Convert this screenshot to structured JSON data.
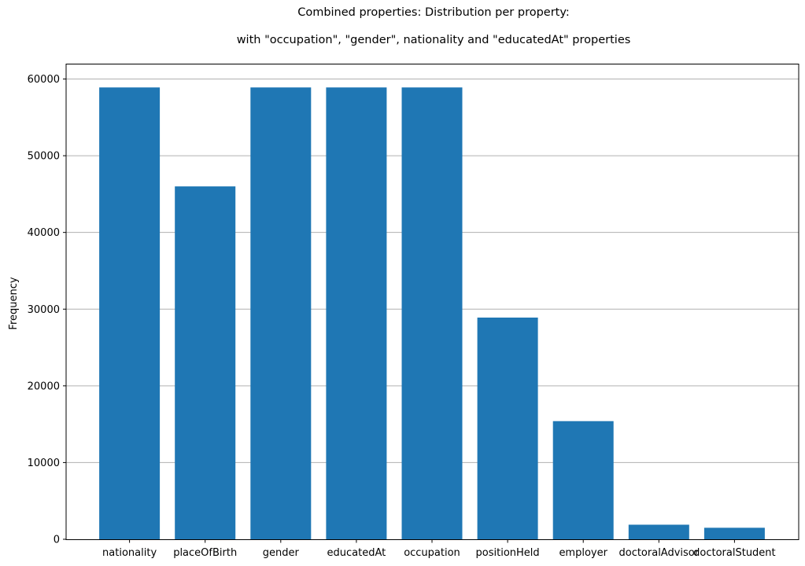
{
  "chart_data": {
    "type": "bar",
    "title": "Combined properties: Distribution per property:",
    "subtitle": "with \"occupation\", \"gender\", nationality and \"educatedAt\" properties",
    "xlabel": "",
    "ylabel": "Frequency",
    "categories": [
      "nationality",
      "placeOfBirth",
      "gender",
      "educatedAt",
      "occupation",
      "positionHeld",
      "employer",
      "doctoralAdvisor",
      "doctoralStudent"
    ],
    "values": [
      58900,
      46000,
      58900,
      58900,
      58900,
      28900,
      15400,
      1900,
      1500
    ],
    "ylim": [
      0,
      60000
    ],
    "yticks": [
      0,
      10000,
      20000,
      30000,
      40000,
      50000,
      60000
    ],
    "grid": "y",
    "bar_color": "#1f77b4"
  }
}
